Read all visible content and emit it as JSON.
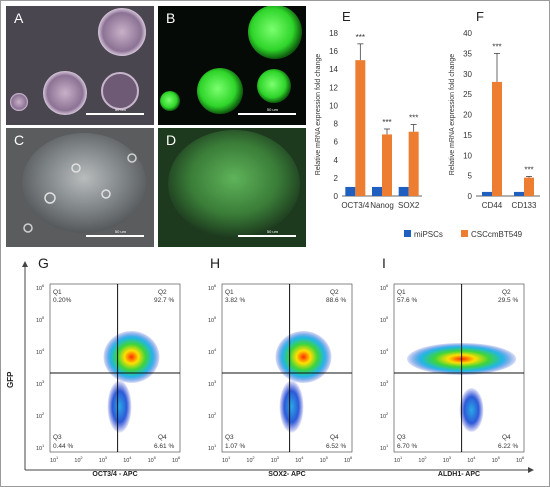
{
  "panels": {
    "A": "A",
    "B": "B",
    "C": "C",
    "D": "D",
    "E": "E",
    "F": "F",
    "G": "G",
    "H": "H",
    "I": "I"
  },
  "micro_scale": "50 um",
  "colors": {
    "mipsc": "#1f5fbf",
    "csc": "#ed7d31"
  },
  "legend": {
    "mipsc": "miPSCs",
    "csc": "CSCcmBT549"
  },
  "chart_data": [
    {
      "type": "bar",
      "panel": "E",
      "categories": [
        "OCT3/4",
        "Nanog",
        "SOX2"
      ],
      "series": [
        {
          "name": "miPSCs",
          "values": [
            1,
            1,
            1
          ],
          "errors": [
            0,
            0,
            0
          ]
        },
        {
          "name": "CSCcmBT549",
          "values": [
            15.0,
            6.8,
            7.1
          ],
          "errors": [
            1.8,
            0.6,
            0.8
          ]
        }
      ],
      "significance": [
        "***",
        "***",
        "***"
      ],
      "ylabel": "Relative mRNA expression fold change",
      "ylim": [
        0,
        18
      ],
      "yticks": [
        "0",
        "2",
        "4",
        "6",
        "8",
        "10",
        "12",
        "14",
        "16",
        "18"
      ]
    },
    {
      "type": "bar",
      "panel": "F",
      "categories": [
        "CD44",
        "CD133"
      ],
      "series": [
        {
          "name": "miPSCs",
          "values": [
            1,
            1
          ],
          "errors": [
            0,
            0
          ]
        },
        {
          "name": "CSCcmBT549",
          "values": [
            28.0,
            4.5
          ],
          "errors": [
            7.0,
            0.3
          ]
        }
      ],
      "significance": [
        "***",
        "***"
      ],
      "ylabel": "Relative mRNA expression fold change",
      "ylim": [
        0,
        40
      ],
      "yticks": [
        "0",
        "5",
        "10",
        "15",
        "20",
        "25",
        "30",
        "35",
        "40"
      ]
    },
    {
      "type": "scatter",
      "panel": "G",
      "xlabel": "OCT3/4 - APC",
      "quadrants": {
        "Q1": "0.20%",
        "Q2": "92.7 %",
        "Q3": "0.44 %",
        "Q4": "6.61 %"
      }
    },
    {
      "type": "scatter",
      "panel": "H",
      "xlabel": "SOX2- APC",
      "quadrants": {
        "Q1": "3.82 %",
        "Q2": "88.6 %",
        "Q3": "1.07 %",
        "Q4": "6.52 %"
      }
    },
    {
      "type": "scatter",
      "panel": "I",
      "xlabel": "ALDH1- APC",
      "quadrants": {
        "Q1": "57.6 %",
        "Q2": "29.5 %",
        "Q3": "6.70 %",
        "Q4": "6.22 %"
      }
    }
  ],
  "flow": {
    "ylabel": "GFP",
    "q_names": [
      "Q1",
      "Q2",
      "Q3",
      "Q4"
    ],
    "xticks": [
      "10",
      "10",
      "10",
      "10",
      "10",
      "10"
    ],
    "xexp": [
      "1",
      "2",
      "3",
      "4",
      "5",
      "6"
    ],
    "yticks": [
      "10",
      "10",
      "10",
      "10",
      "10",
      "10"
    ],
    "yexp": [
      "1",
      "2",
      "3",
      "4",
      "5",
      "6"
    ]
  }
}
